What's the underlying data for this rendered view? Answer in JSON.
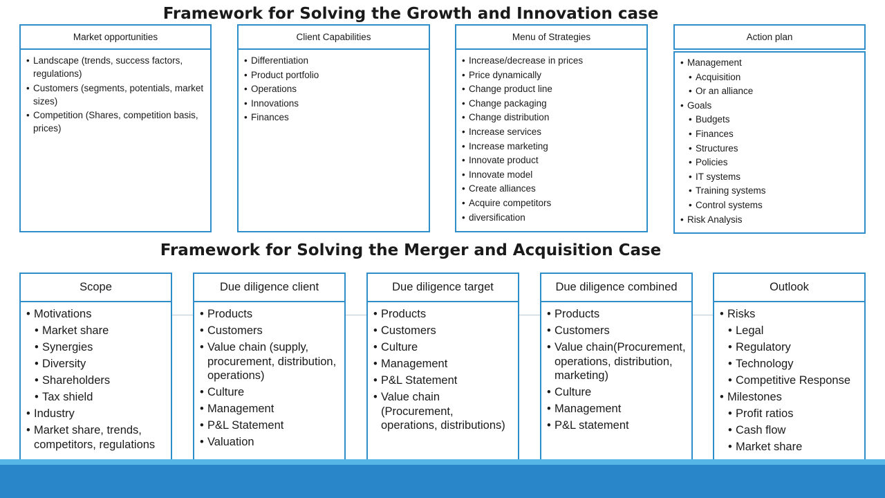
{
  "top": {
    "title": "Framework for Solving the Growth and Innovation case",
    "columns": [
      {
        "header": "Market opportunities",
        "items": [
          {
            "text": "Landscape (trends, success factors, regulations)",
            "level": 0
          },
          {
            "text": "Customers (segments, potentials, market sizes)",
            "level": 0
          },
          {
            "text": "Competition  (Shares, competition basis, prices)",
            "level": 0
          }
        ]
      },
      {
        "header": "Client Capabilities",
        "items": [
          {
            "text": "Differentiation",
            "level": 0
          },
          {
            "text": "Product  portfolio",
            "level": 0
          },
          {
            "text": "Operations",
            "level": 0
          },
          {
            "text": "Innovations",
            "level": 0
          },
          {
            "text": "Finances",
            "level": 0
          }
        ]
      },
      {
        "header": "Menu of Strategies",
        "items": [
          {
            "text": "Increase/decrease in prices",
            "level": 0
          },
          {
            "text": "Price dynamically",
            "level": 0
          },
          {
            "text": "Change product  line",
            "level": 0
          },
          {
            "text": "Change packaging",
            "level": 0
          },
          {
            "text": "Change distribution",
            "level": 0
          },
          {
            "text": "Increase services",
            "level": 0
          },
          {
            "text": "Increase marketing",
            "level": 0
          },
          {
            "text": "Innovate product",
            "level": 0
          },
          {
            "text": "Innovate model",
            "level": 0
          },
          {
            "text": "Create alliances",
            "level": 0
          },
          {
            "text": "Acquire competitors",
            "level": 0
          },
          {
            "text": "diversification",
            "level": 0
          }
        ]
      },
      {
        "header": "Action plan",
        "items": [
          {
            "text": "Management",
            "level": 0
          },
          {
            "text": "Acquisition",
            "level": 1
          },
          {
            "text": "Or an alliance",
            "level": 1
          },
          {
            "text": "Goals",
            "level": 0
          },
          {
            "text": "Budgets",
            "level": 1
          },
          {
            "text": "Finances",
            "level": 1
          },
          {
            "text": "Structures",
            "level": 1
          },
          {
            "text": "Policies",
            "level": 1
          },
          {
            "text": "IT systems",
            "level": 1
          },
          {
            "text": "Training systems",
            "level": 1
          },
          {
            "text": "Control systems",
            "level": 1
          },
          {
            "text": "Risk Analysis",
            "level": 0
          }
        ]
      }
    ]
  },
  "bottom": {
    "title": "Framework for Solving the Merger and Acquisition Case",
    "columns": [
      {
        "header": "Scope",
        "items": [
          {
            "text": "Motivations",
            "level": 0
          },
          {
            "text": "Market share",
            "level": 1
          },
          {
            "text": "Synergies",
            "level": 1
          },
          {
            "text": "Diversity",
            "level": 1
          },
          {
            "text": "Shareholders",
            "level": 1
          },
          {
            "text": "Tax shield",
            "level": 1
          },
          {
            "text": "Industry",
            "level": 0
          },
          {
            "text": "Market share, trends, competitors, regulations",
            "level": 0
          }
        ]
      },
      {
        "header": "Due diligence client",
        "items": [
          {
            "text": "Products",
            "level": 0
          },
          {
            "text": "Customers",
            "level": 0
          },
          {
            "text": "Value chain (supply, procurement, distribution, operations)",
            "level": 0
          },
          {
            "text": "Culture",
            "level": 0
          },
          {
            "text": "Management",
            "level": 0
          },
          {
            "text": "P&L Statement",
            "level": 0
          },
          {
            "text": "Valuation",
            "level": 0
          }
        ]
      },
      {
        "header": "Due diligence target",
        "items": [
          {
            "text": "Products",
            "level": 0
          },
          {
            "text": "Customers",
            "level": 0
          },
          {
            "text": "Culture",
            "level": 0
          },
          {
            "text": "Management",
            "level": 0
          },
          {
            "text": "P&L Statement",
            "level": 0
          },
          {
            "text": "Value chain (Procurement, operations, distributions)",
            "level": 0
          }
        ]
      },
      {
        "header": "Due diligence combined",
        "items": [
          {
            "text": "Products",
            "level": 0
          },
          {
            "text": "Customers",
            "level": 0
          },
          {
            "text": "Value chain(Procurement, operations, distribution, marketing)",
            "level": 0
          },
          {
            "text": "Culture",
            "level": 0
          },
          {
            "text": "Management",
            "level": 0
          },
          {
            "text": "P&L statement",
            "level": 0
          }
        ]
      },
      {
        "header": "Outlook",
        "items": [
          {
            "text": "Risks",
            "level": 0
          },
          {
            "text": "Legal",
            "level": 1
          },
          {
            "text": "Regulatory",
            "level": 1
          },
          {
            "text": "Technology",
            "level": 1
          },
          {
            "text": "Competitive Response",
            "level": 1
          },
          {
            "text": "Milestones",
            "level": 0
          },
          {
            "text": "Profit ratios",
            "level": 1
          },
          {
            "text": "Cash flow",
            "level": 1
          },
          {
            "text": "Market share",
            "level": 1
          }
        ]
      }
    ]
  },
  "colors": {
    "border": "#2e8ec9",
    "band_light": "#56b6e6",
    "band_dark": "#2987c9"
  }
}
